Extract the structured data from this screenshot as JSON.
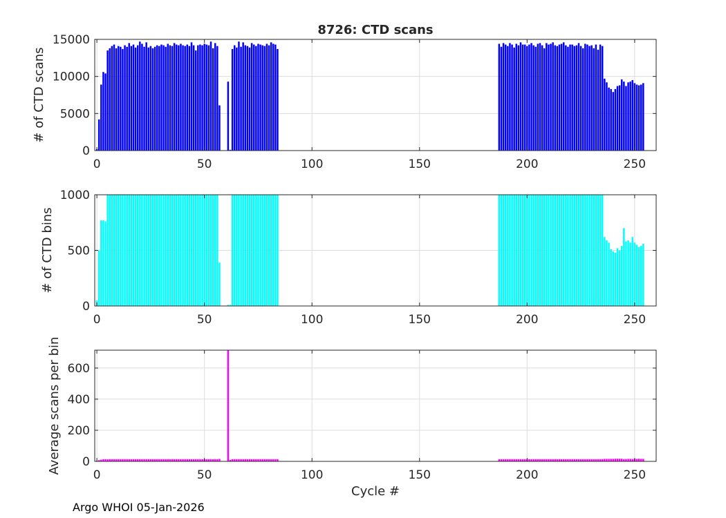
{
  "figure": {
    "title": "8726: CTD scans",
    "xlabel": "Cycle #",
    "footer": "Argo WHOI 05-Jan-2026"
  },
  "chart_data": [
    {
      "type": "bar",
      "name": "scans",
      "title": "8726: CTD scans",
      "xlabel": "",
      "ylabel": "# of CTD scans",
      "color": "#0000ff",
      "xlim": [
        -1,
        260
      ],
      "ylim": [
        0,
        15000
      ],
      "xticks": [
        0,
        50,
        100,
        150,
        200,
        250
      ],
      "yticks": [
        0,
        5000,
        10000,
        15000
      ],
      "grid": true,
      "segments": [
        {
          "start": 0,
          "values": [
            200,
            4200,
            8900,
            10600,
            10400,
            13500,
            13800,
            14100,
            14300,
            13800,
            14100,
            14000,
            13700,
            14200,
            14000,
            14500,
            14100,
            14300,
            13900,
            14200,
            14700,
            14400,
            14000,
            14600,
            13900,
            14100,
            13800,
            14000,
            14200,
            14100,
            14300,
            14200,
            14000,
            14400,
            14200,
            14100,
            14500,
            14300,
            14200,
            14400,
            14200,
            14100,
            14300,
            14100,
            14600,
            14200,
            13500,
            14200,
            14300,
            14200,
            14400,
            14300,
            14200,
            14700,
            13800,
            14500,
            14100,
            6100
          ]
        },
        {
          "start": 61,
          "values": [
            9300,
            100,
            13700,
            14200,
            13900,
            14700,
            14000,
            14600,
            14200,
            14100,
            13900,
            14500,
            14300,
            14100,
            14400,
            14300,
            14200,
            14100,
            14400,
            14200,
            14600,
            14400,
            14300,
            13700
          ]
        },
        {
          "start": 187,
          "values": [
            14400,
            14000,
            14500,
            14300,
            14100,
            14500,
            14300,
            13900,
            14400,
            14200,
            14600,
            14300,
            14300,
            14100,
            14300,
            14500,
            14200,
            14000,
            14400,
            14500,
            14200,
            13800,
            14500,
            14300,
            14400,
            14600,
            14200,
            14100,
            14300,
            14400,
            14600,
            14200,
            14000,
            14300,
            14300,
            14100,
            14200,
            14500,
            14100,
            13800,
            14400,
            14300,
            14100,
            14200,
            13800,
            14300,
            13600,
            14300,
            14100,
            9700,
            9200,
            8500,
            8300,
            7900,
            8300,
            8700,
            8800,
            9600,
            9300,
            8700,
            9200,
            9300,
            9500,
            9100,
            8900,
            8800,
            8900,
            9100
          ]
        }
      ]
    },
    {
      "type": "bar",
      "name": "bins",
      "title": "",
      "xlabel": "",
      "ylabel": "# of CTD bins",
      "color": "#00ffff",
      "xlim": [
        -1,
        260
      ],
      "ylim": [
        0,
        1000
      ],
      "xticks": [
        0,
        50,
        100,
        150,
        200,
        250
      ],
      "yticks": [
        0,
        500,
        1000
      ],
      "grid": true,
      "segments": [
        {
          "start": 0,
          "values": [
            50,
            500,
            770,
            770,
            760,
            1010,
            1010,
            1010,
            1010,
            1010,
            1010,
            1010,
            1010,
            1010,
            1010,
            1010,
            1010,
            1010,
            1010,
            1010,
            1010,
            1010,
            1010,
            1010,
            1010,
            1010,
            1010,
            1010,
            1010,
            1010,
            1010,
            1010,
            1010,
            1010,
            1010,
            1010,
            1010,
            1010,
            1010,
            1010,
            1010,
            1010,
            1010,
            1010,
            1010,
            1010,
            1010,
            1010,
            1010,
            1010,
            1010,
            1010,
            1010,
            1010,
            1010,
            1010,
            1010,
            390
          ]
        },
        {
          "start": 61,
          "values": [
            10,
            10,
            1010,
            1010,
            1010,
            1010,
            1010,
            1010,
            1010,
            1010,
            1010,
            1010,
            1010,
            1010,
            1010,
            1010,
            1010,
            1010,
            1010,
            1010,
            1010,
            1010,
            1010,
            1010
          ]
        },
        {
          "start": 187,
          "values": [
            1010,
            1010,
            1010,
            1010,
            1010,
            1010,
            1010,
            1010,
            1010,
            1010,
            1010,
            1010,
            1010,
            1010,
            1010,
            1010,
            1010,
            1010,
            1010,
            1010,
            1010,
            1010,
            1010,
            1010,
            1010,
            1010,
            1010,
            1010,
            1010,
            1010,
            1010,
            1010,
            1010,
            1010,
            1010,
            1010,
            1010,
            1010,
            1010,
            1010,
            1010,
            1010,
            1010,
            1010,
            1010,
            1010,
            1010,
            1010,
            1010,
            620,
            590,
            570,
            510,
            490,
            480,
            520,
            500,
            540,
            700,
            580,
            590,
            570,
            620,
            570,
            550,
            530,
            540,
            560
          ]
        }
      ]
    },
    {
      "type": "bar",
      "name": "avg",
      "title": "",
      "xlabel": "Cycle #",
      "ylabel": "Average scans per bin",
      "color": "#ff00ff",
      "xlim": [
        -1,
        260
      ],
      "ylim": [
        0,
        715
      ],
      "xticks": [
        0,
        50,
        100,
        150,
        200,
        250
      ],
      "yticks": [
        0,
        200,
        400,
        600
      ],
      "grid": true,
      "segments": [
        {
          "start": 0,
          "values": [
            4,
            8,
            11,
            14,
            14,
            13,
            14,
            14,
            14,
            14,
            14,
            14,
            14,
            14,
            14,
            14,
            14,
            14,
            14,
            14,
            14,
            14,
            14,
            14,
            14,
            14,
            14,
            14,
            14,
            14,
            14,
            14,
            14,
            14,
            14,
            14,
            14,
            14,
            14,
            14,
            14,
            14,
            14,
            14,
            14,
            14,
            14,
            14,
            14,
            14,
            14,
            14,
            14,
            14,
            14,
            14,
            14,
            16
          ]
        },
        {
          "start": 61,
          "values": [
            715,
            10,
            14,
            14,
            14,
            14,
            14,
            14,
            14,
            14,
            14,
            14,
            14,
            14,
            14,
            14,
            14,
            14,
            14,
            14,
            14,
            14,
            14,
            14
          ]
        },
        {
          "start": 187,
          "values": [
            14,
            14,
            14,
            14,
            14,
            14,
            14,
            14,
            14,
            14,
            14,
            14,
            14,
            14,
            14,
            14,
            14,
            14,
            14,
            14,
            14,
            14,
            14,
            14,
            14,
            14,
            14,
            14,
            14,
            14,
            14,
            14,
            14,
            14,
            14,
            14,
            14,
            14,
            14,
            14,
            14,
            14,
            14,
            14,
            14,
            14,
            14,
            14,
            14,
            16,
            16,
            16,
            16,
            16,
            17,
            17,
            17,
            17,
            14,
            15,
            16,
            16,
            15,
            16,
            16,
            17,
            16,
            16
          ]
        }
      ]
    }
  ]
}
